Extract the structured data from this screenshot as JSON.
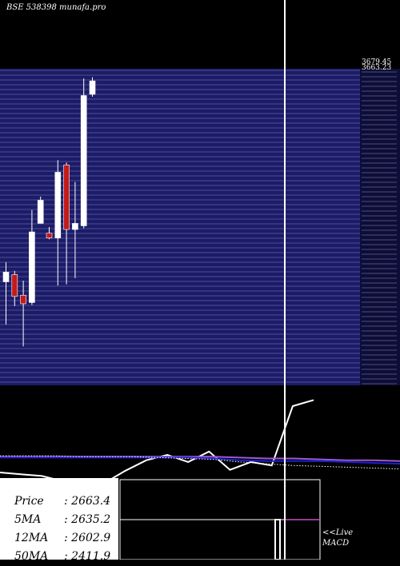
{
  "header": {
    "title": "BSE 538398  munafa.pro"
  },
  "chart_data": [
    {
      "type": "candlestick",
      "panel": "price",
      "candles": [
        {
          "open": 2645,
          "high": 2661,
          "low": 2610,
          "close": 2653,
          "color": "up"
        },
        {
          "open": 2651,
          "high": 2654,
          "low": 2625,
          "close": 2633,
          "color": "down"
        },
        {
          "open": 2634,
          "high": 2646,
          "low": 2592,
          "close": 2627,
          "color": "down"
        },
        {
          "open": 2628,
          "high": 2704,
          "low": 2626,
          "close": 2686,
          "color": "up"
        },
        {
          "open": 2693,
          "high": 2715,
          "low": 2693,
          "close": 2712,
          "color": "up"
        },
        {
          "open": 2685,
          "high": 2690,
          "low": 2680,
          "close": 2681,
          "color": "down"
        },
        {
          "open": 2681,
          "high": 2745,
          "low": 2642,
          "close": 2735,
          "color": "up"
        },
        {
          "open": 2741,
          "high": 2743,
          "low": 2643,
          "close": 2688,
          "color": "down"
        },
        {
          "open": 2688,
          "high": 2727,
          "low": 2648,
          "close": 2693,
          "color": "up"
        },
        {
          "open": 2691,
          "high": 2812,
          "low": 2689,
          "close": 2798,
          "color": "up"
        },
        {
          "open": 2799,
          "high": 2813,
          "low": 2797,
          "close": 2810,
          "color": "up"
        }
      ],
      "price_labels": [
        "3679.45",
        "3663.23"
      ],
      "grid": true
    },
    {
      "type": "line",
      "panel": "indicator",
      "series": [
        {
          "key": "price_line",
          "color": "#ffffff",
          "values": [
            42,
            40,
            38,
            32,
            30,
            30,
            44,
            56,
            62,
            54,
            66,
            45,
            54,
            50,
            118,
            125
          ]
        },
        {
          "key": "ma_purple",
          "color": "#9b59d6",
          "values": [
            60,
            60,
            60,
            60,
            60,
            60,
            60,
            60,
            60,
            59,
            58,
            58,
            57,
            56,
            56,
            55
          ]
        },
        {
          "key": "ma_blue",
          "color": "#2020c8",
          "values": [
            59,
            59,
            59,
            59,
            59,
            59,
            59,
            59,
            58,
            56,
            55,
            55,
            55,
            54,
            53,
            52
          ]
        },
        {
          "key": "ma_dotted",
          "color": "#ffffff",
          "values": [
            61,
            61,
            61,
            60,
            60,
            60,
            59,
            58,
            57,
            54,
            52,
            50,
            49,
            48,
            47,
            46
          ]
        }
      ],
      "live_label": [
        "<<Live",
        "MACD"
      ]
    }
  ],
  "price_box": {
    "rows": [
      {
        "label": "Price",
        "value": ": 2663.4"
      },
      {
        "label": "5MA",
        "value": ": 2635.2"
      },
      {
        "label": "12MA",
        "value": ": 2602.9"
      },
      {
        "label": "50MA",
        "value": ": 2411.9"
      }
    ]
  },
  "colors": {
    "panel_bg": "#1c1c66",
    "grid_line": "#5b5bb0",
    "up_candle": "#ffffff",
    "down_candle": "#c41a1a",
    "background": "#000000"
  }
}
